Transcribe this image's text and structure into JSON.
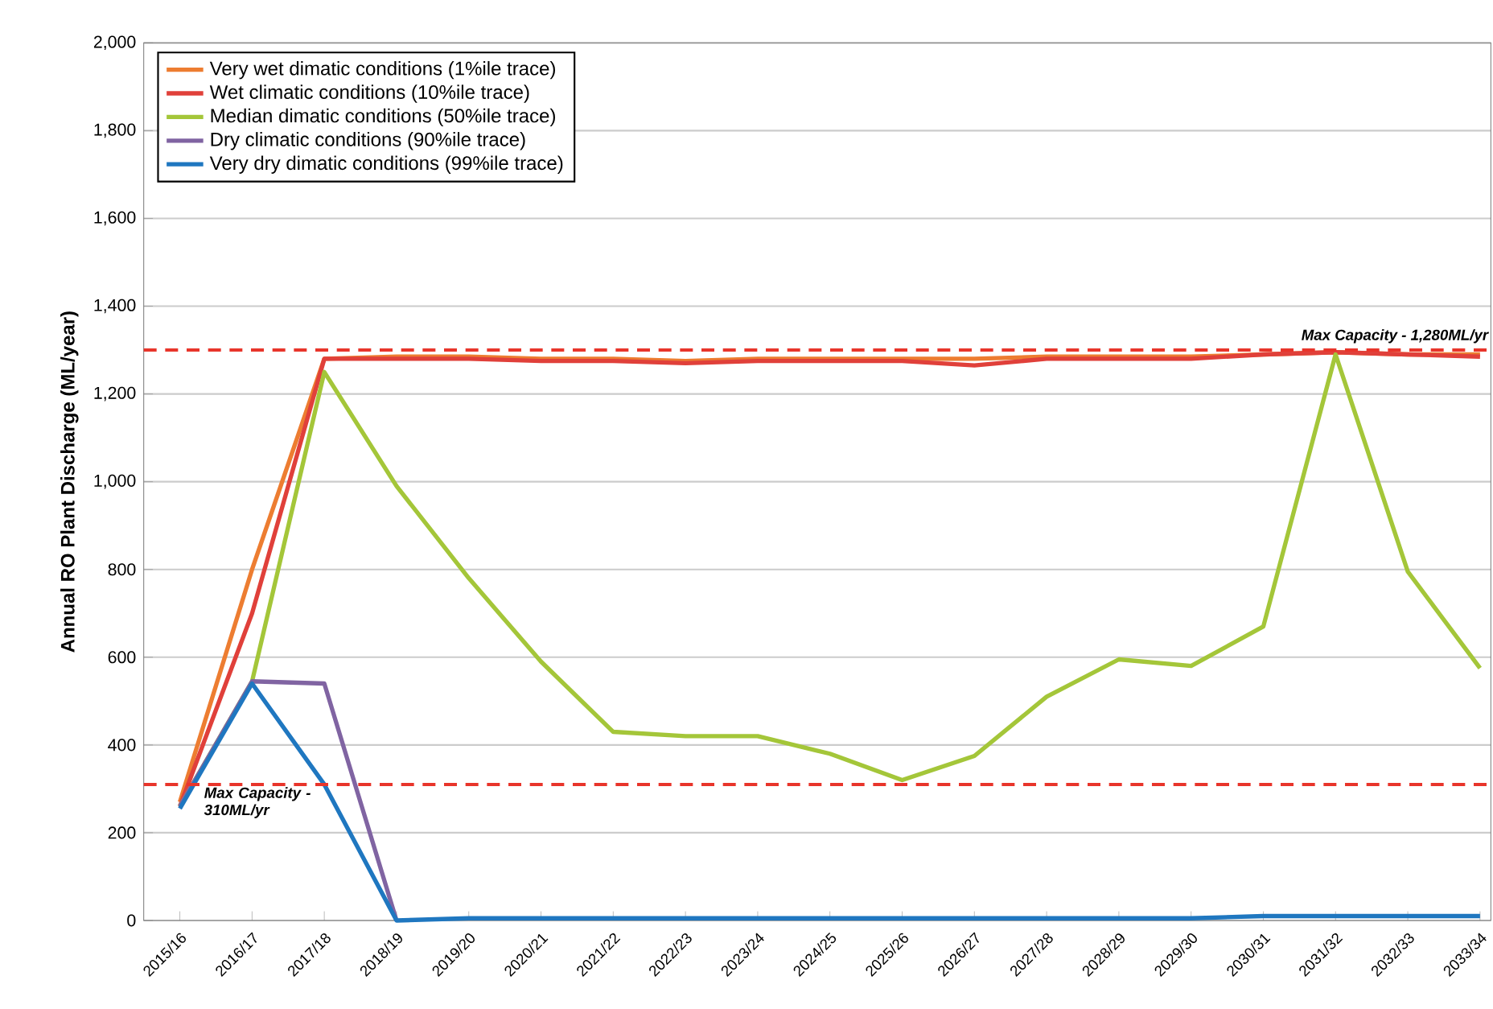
{
  "chart_data": {
    "type": "line",
    "ylabel": "Annual RO Plant Discharge (ML/year)",
    "categories": [
      "2015/16",
      "2016/17",
      "2017/18",
      "2018/19",
      "2019/20",
      "2020/21",
      "2021/22",
      "2022/23",
      "2023/24",
      "2024/25",
      "2025/26",
      "2026/27",
      "2027/28",
      "2028/29",
      "2029/30",
      "2030/31",
      "2031/32",
      "2032/33",
      "2033/34"
    ],
    "series": [
      {
        "name": "Very wet dimatic conditions (1%ile trace)",
        "color": "#ed7d31",
        "values": [
          270,
          800,
          1280,
          1285,
          1285,
          1280,
          1280,
          1275,
          1280,
          1280,
          1280,
          1280,
          1285,
          1285,
          1285,
          1290,
          1295,
          1290,
          1290
        ]
      },
      {
        "name": "Wet climatic conditions (10%ile trace)",
        "color": "#e0403a",
        "values": [
          260,
          700,
          1280,
          1280,
          1280,
          1275,
          1275,
          1270,
          1275,
          1275,
          1275,
          1265,
          1280,
          1280,
          1280,
          1290,
          1295,
          1290,
          1285
        ]
      },
      {
        "name": "Median dimatic conditions (50%ile trace)",
        "color": "#a4c639",
        "values": [
          260,
          545,
          1250,
          990,
          780,
          590,
          430,
          420,
          420,
          380,
          320,
          375,
          510,
          595,
          580,
          670,
          1290,
          795,
          575
        ]
      },
      {
        "name": "Dry climatic conditions (90%ile trace)",
        "color": "#8064a2",
        "values": [
          260,
          545,
          540,
          0,
          null,
          null,
          null,
          null,
          null,
          null,
          null,
          null,
          null,
          null,
          null,
          null,
          null,
          null,
          null
        ]
      },
      {
        "name": "Very dry dimatic conditions (99%ile trace)",
        "color": "#1f77c0",
        "values": [
          255,
          540,
          310,
          0,
          5,
          5,
          5,
          5,
          5,
          5,
          5,
          5,
          5,
          5,
          5,
          10,
          10,
          10,
          10
        ]
      }
    ],
    "ylim": [
      0,
      2000
    ],
    "yticks": [
      0,
      200,
      400,
      600,
      800,
      {
        "value": 1000,
        "label": "1,000"
      },
      {
        "value": 1200,
        "label": "1,200"
      },
      {
        "value": 1400,
        "label": "1,400"
      },
      {
        "value": 1600,
        "label": "1,600"
      },
      {
        "value": 1800,
        "label": "1,800"
      },
      {
        "value": 2000,
        "label": "2,000"
      }
    ],
    "ref_lines": [
      {
        "axis": "y",
        "value": 1300,
        "label": "Max Capacity - 1,280ML/yr",
        "color": "#e8352b",
        "line_style": "dashed"
      },
      {
        "axis": "y",
        "value": 310,
        "label": "Max Capacity - 310ML/yr",
        "color": "#e8352b",
        "line_style": "dashed"
      }
    ],
    "grid": "y",
    "legend": "top left",
    "marker": "none",
    "line_style": "solid"
  }
}
